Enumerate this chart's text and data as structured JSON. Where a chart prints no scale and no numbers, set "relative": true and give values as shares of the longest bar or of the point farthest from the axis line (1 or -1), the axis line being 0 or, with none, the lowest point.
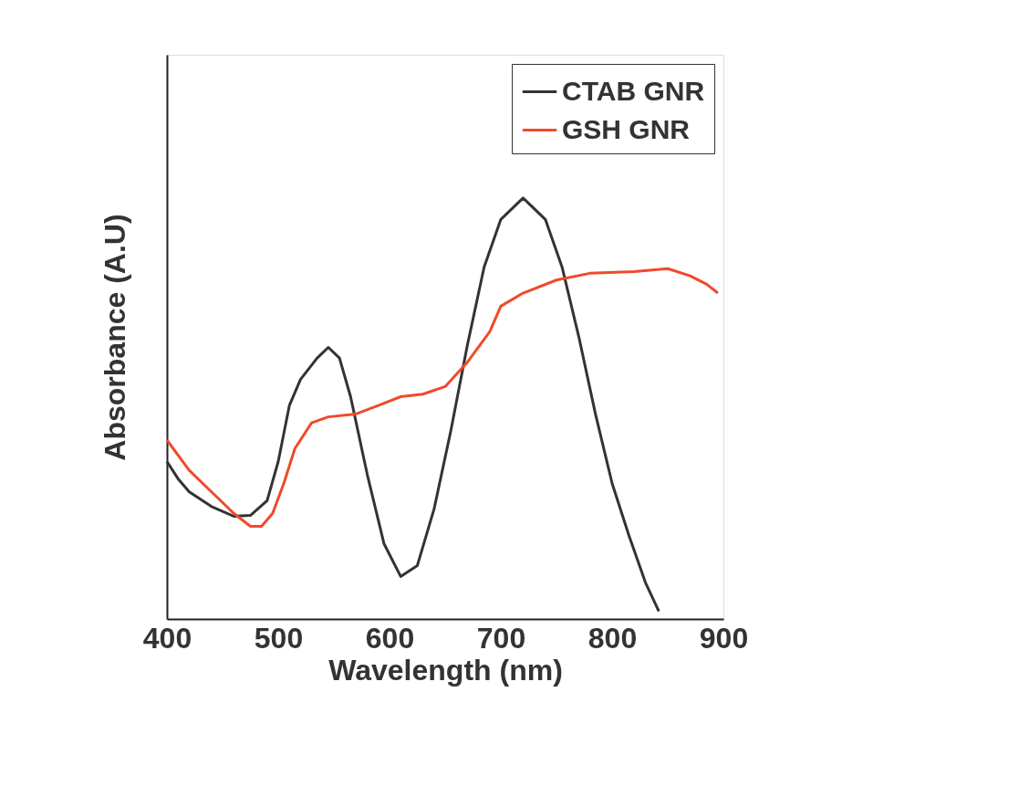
{
  "chart_data": {
    "type": "line",
    "xlabel": "Wavelength (nm)",
    "ylabel": "Absorbance (A.U)",
    "relative": true,
    "xlim": [
      400,
      900
    ],
    "xticks": [
      400,
      500,
      600,
      700,
      800,
      900
    ],
    "tick_labels": "x",
    "grid": false,
    "legend": "top right",
    "marker": "none",
    "line_style": "solid",
    "series": [
      {
        "name": "CTAB GNR",
        "color": "#333333",
        "x": [
          400,
          410,
          420,
          440,
          460,
          475,
          490,
          500,
          510,
          520,
          535,
          545,
          555,
          565,
          580,
          595,
          610,
          625,
          640,
          655,
          670,
          685,
          700,
          720,
          740,
          755,
          770,
          785,
          800,
          815,
          830,
          842
        ],
        "values": [
          0.374,
          0.333,
          0.302,
          0.267,
          0.244,
          0.246,
          0.281,
          0.374,
          0.507,
          0.569,
          0.62,
          0.645,
          0.62,
          0.528,
          0.343,
          0.179,
          0.101,
          0.127,
          0.261,
          0.446,
          0.651,
          0.836,
          0.949,
          1.0,
          0.949,
          0.836,
          0.671,
          0.487,
          0.322,
          0.199,
          0.086,
          0.018
        ]
      },
      {
        "name": "GSH GNR",
        "color": "#f04a2c",
        "x": [
          400,
          420,
          440,
          460,
          475,
          485,
          495,
          505,
          515,
          530,
          545,
          570,
          590,
          610,
          630,
          650,
          670,
          690,
          700,
          720,
          750,
          780,
          820,
          850,
          870,
          885,
          895
        ],
        "values": [
          0.425,
          0.353,
          0.302,
          0.251,
          0.22,
          0.22,
          0.251,
          0.322,
          0.405,
          0.466,
          0.48,
          0.487,
          0.507,
          0.528,
          0.534,
          0.552,
          0.61,
          0.682,
          0.743,
          0.774,
          0.805,
          0.821,
          0.825,
          0.832,
          0.815,
          0.795,
          0.774
        ]
      }
    ]
  }
}
